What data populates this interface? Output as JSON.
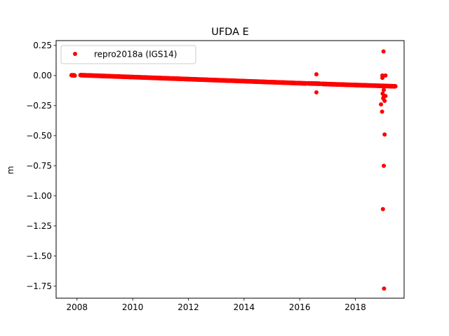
{
  "chart_data": {
    "type": "scatter",
    "title": "UFDA E",
    "xlabel": "",
    "ylabel": "m",
    "xlim": [
      2007.25,
      2019.75
    ],
    "ylim": [
      -1.85,
      0.29
    ],
    "xticks": [
      2008,
      2010,
      2012,
      2014,
      2016,
      2018
    ],
    "xtick_labels": [
      "2008",
      "2010",
      "2012",
      "2014",
      "2016",
      "2018"
    ],
    "yticks": [
      0.25,
      0.0,
      -0.25,
      -0.5,
      -0.75,
      -1.0,
      -1.25,
      -1.5,
      -1.75
    ],
    "ytick_labels": [
      "0.25",
      "0.00",
      "−0.25",
      "−0.50",
      "−0.75",
      "−1.00",
      "−1.25",
      "−1.50",
      "−1.75"
    ],
    "grid": false,
    "legend_position": "upper-left",
    "marker_color": "#ff0000",
    "series": [
      {
        "name": "repro2018a (IGS14)",
        "color": "#ff0000",
        "marker": "circle",
        "segments": [
          {
            "x_start": 2007.8,
            "x_end": 2007.93,
            "y_start": 0.002,
            "y_end": 0.001
          },
          {
            "x_start": 2008.12,
            "x_end": 2016.25,
            "y_start": 0.003,
            "y_end": -0.066
          },
          {
            "x_start": 2016.3,
            "x_end": 2016.75,
            "y_start": -0.066,
            "y_end": -0.068
          },
          {
            "x_start": 2016.8,
            "x_end": 2019.45,
            "y_start": -0.07,
            "y_end": -0.09
          }
        ],
        "outliers": [
          {
            "x": 2016.6,
            "y": 0.01
          },
          {
            "x": 2016.6,
            "y": -0.14
          },
          {
            "x": 2018.92,
            "y": -0.24
          },
          {
            "x": 2018.96,
            "y": -0.3
          },
          {
            "x": 2018.97,
            "y": 0.0
          },
          {
            "x": 2018.97,
            "y": -0.02
          },
          {
            "x": 2018.98,
            "y": -0.15
          },
          {
            "x": 2019.0,
            "y": -0.19
          },
          {
            "x": 2019.05,
            "y": -0.21
          },
          {
            "x": 2019.08,
            "y": -0.17
          },
          {
            "x": 2019.02,
            "y": -0.17
          },
          {
            "x": 2019.02,
            "y": -0.12
          },
          {
            "x": 2019.01,
            "y": 0.2
          },
          {
            "x": 2019.08,
            "y": 0.0
          },
          {
            "x": 2019.05,
            "y": -0.49
          },
          {
            "x": 2019.02,
            "y": -0.75
          },
          {
            "x": 2018.99,
            "y": -1.11
          },
          {
            "x": 2019.03,
            "y": -1.77
          }
        ]
      }
    ]
  }
}
